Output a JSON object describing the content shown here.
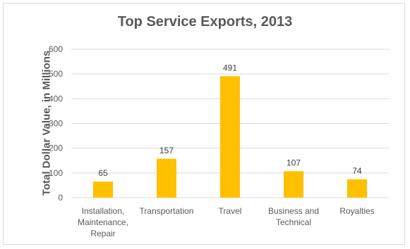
{
  "chart_data": {
    "type": "bar",
    "title": "Top Service Exports, 2013",
    "xlabel": "",
    "ylabel": "Total Dollar Value, in Millions",
    "categories": [
      [
        "Installation,",
        "Maintenance,",
        "Repair"
      ],
      [
        "Transportation"
      ],
      [
        "Travel"
      ],
      [
        "Business and",
        "Technical"
      ],
      [
        "Royalties"
      ]
    ],
    "values": [
      65,
      157,
      491,
      107,
      74
    ],
    "ylim": [
      0,
      600
    ],
    "yticks": [
      0,
      100,
      200,
      300,
      400,
      500,
      600
    ],
    "grid": true,
    "legend": "none",
    "bar_color": "#FFC000",
    "gridline_color": "#d9d9d9"
  }
}
